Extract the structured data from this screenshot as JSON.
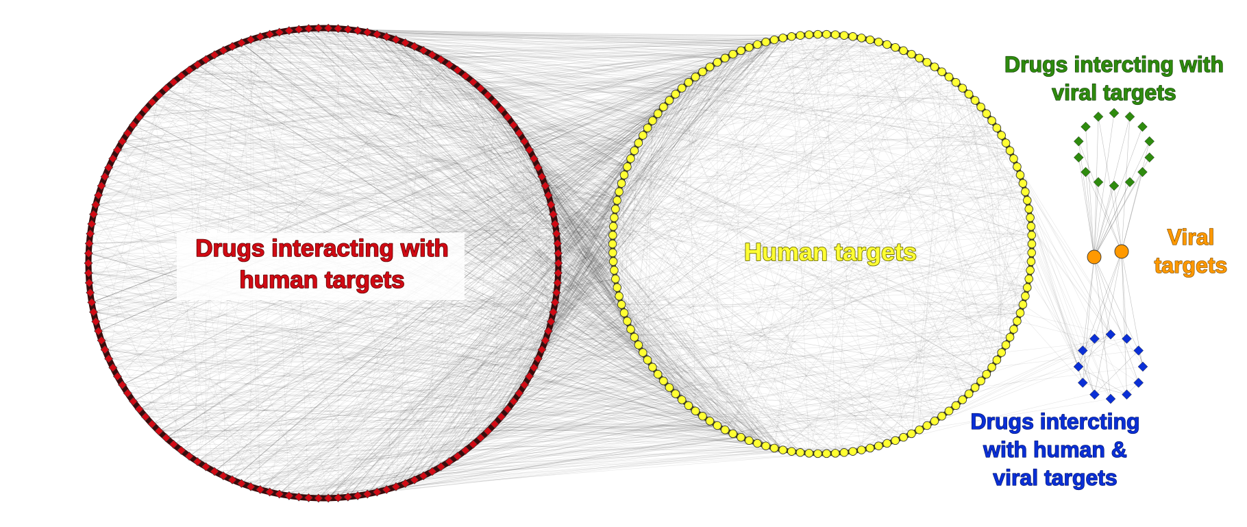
{
  "groups": {
    "drugs_human": {
      "label_lines": [
        "Drugs interacting with",
        "human targets"
      ],
      "color": "#d10a14",
      "shape": "diamond"
    },
    "human_targets": {
      "label_lines": [
        "Human targets"
      ],
      "color": "#ffff33",
      "shape": "circle"
    },
    "drugs_viral": {
      "label_lines": [
        "Drugs intercting with",
        "viral targets"
      ],
      "color": "#2e8b0e",
      "shape": "diamond"
    },
    "viral_targets": {
      "label_lines": [
        "Viral",
        "targets"
      ],
      "color": "#ff9900",
      "shape": "circle"
    },
    "drugs_both": {
      "label_lines": [
        "Drugs intercting",
        "with human &",
        "viral targets"
      ],
      "color": "#0a2fd6",
      "shape": "diamond"
    }
  },
  "colors": {
    "edge": "#2b2b2b",
    "node_outline": "#333333"
  }
}
